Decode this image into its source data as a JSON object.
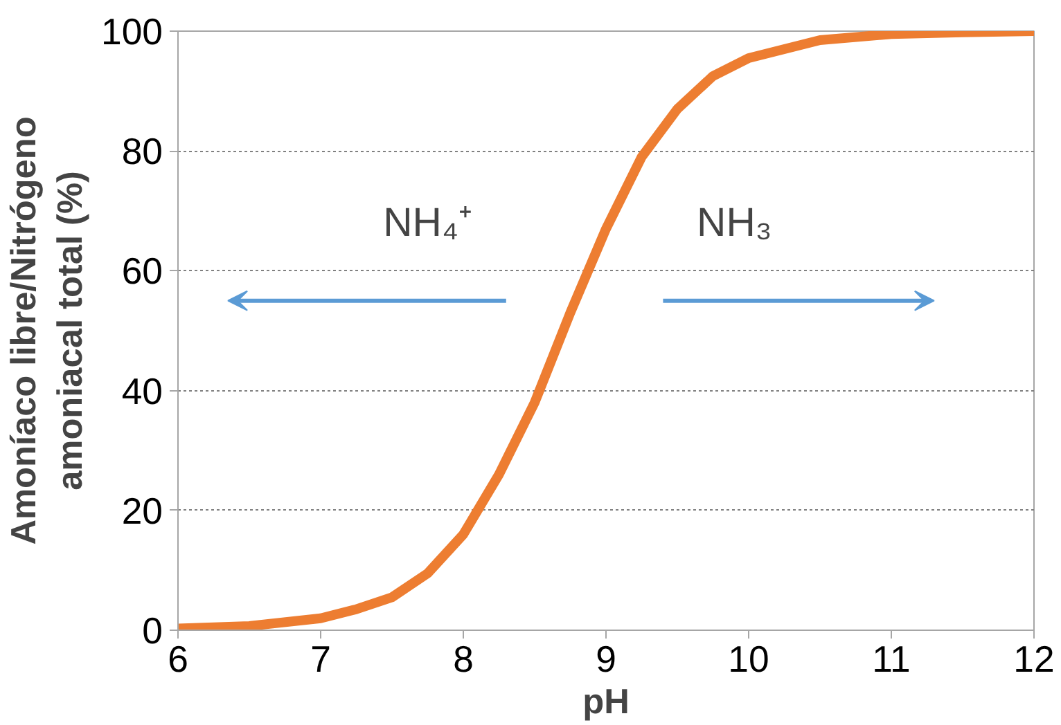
{
  "chart_data": {
    "type": "line",
    "xlabel": "pH",
    "ylabel": "Amoníaco libre/Nitrógeno\namoniacal total (%)",
    "x": [
      6,
      6.5,
      7,
      7.25,
      7.5,
      7.75,
      8,
      8.25,
      8.5,
      8.75,
      9,
      9.25,
      9.5,
      9.75,
      10,
      10.5,
      11,
      11.5,
      12
    ],
    "series": [
      {
        "color": "#ed7d31",
        "values": [
          0.3,
          0.7,
          2,
          3.5,
          5.5,
          9.5,
          16,
          26,
          38,
          53,
          67,
          79,
          87,
          92.5,
          95.5,
          98.5,
          99.5,
          99.8,
          100
        ]
      }
    ],
    "xlim": [
      6,
      12
    ],
    "ylim": [
      0,
      100
    ],
    "xticks": [
      6,
      7,
      8,
      9,
      10,
      11,
      12
    ],
    "yticks": [
      0,
      20,
      40,
      60,
      80,
      100
    ],
    "grid": "y",
    "marker": "none",
    "line_style": "solid",
    "annotations": [
      "NH₄⁺",
      "NH₃"
    ]
  }
}
